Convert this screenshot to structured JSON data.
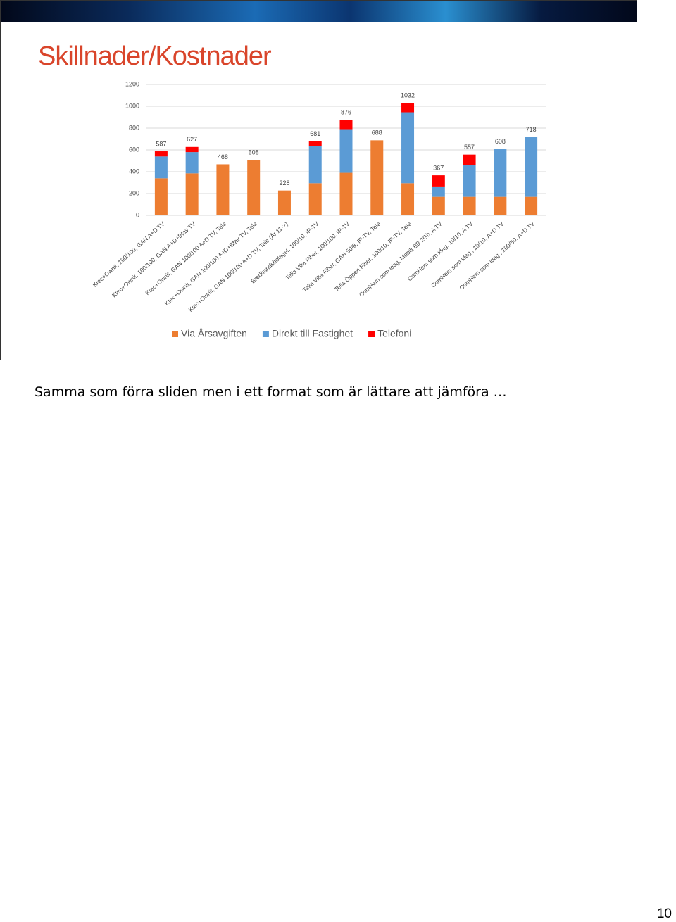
{
  "chart_data": {
    "type": "stacked_bar",
    "title": "Skillnader/Kostnader",
    "categories": [
      "Ktec+Ownit, 100/100, GAN A+D TV",
      "Ktec+Ownit, 100/100, GAN A+D+Bfav TV",
      "Ktec+Ownit, GAN 100/100 A+D TV, Tele",
      "Ktec+Ownit, GAN 100/100 A+D+Bfav TV, Tele",
      "Ktec+Ownit, GAN 100/100 A+D TV, Tele (År 11->)",
      "Bredbandsbolaget, 100/10, IP-TV",
      "Telia Villa Fiber, 100/100, IP-TV",
      "Telia Villa Fiber, GAN 50/8, IP-TV, Tele",
      "Telia Öppen Fiber, 100/10, IP-TV, Tele",
      "ComHem som idag, Mobilt BB 2Gb, A TV",
      "ComHem som idag, 10/10, A TV",
      "ComHem som idag , 10/10, A+D TV",
      "ComHem som idag , 100/50, A+D TV"
    ],
    "series": [
      {
        "name": "Via Årsavgiften",
        "color": "#ed7d31",
        "values": [
          340,
          385,
          468,
          508,
          228,
          295,
          390,
          688,
          295,
          170,
          170,
          170,
          170
        ]
      },
      {
        "name": "Direkt till Fastighet",
        "color": "#5b9bd5",
        "values": [
          200,
          195,
          0,
          0,
          0,
          340,
          400,
          0,
          650,
          95,
          290,
          438,
          548
        ]
      },
      {
        "name": "Telefoni",
        "color": "#ff0000",
        "values": [
          47,
          47,
          0,
          0,
          0,
          46,
          86,
          0,
          87,
          102,
          97,
          0,
          0
        ]
      }
    ],
    "totals": [
      587,
      627,
      468,
      508,
      228,
      681,
      876,
      688,
      1032,
      367,
      557,
      608,
      718
    ],
    "ylim": [
      0,
      1200
    ],
    "yticks": [
      0,
      200,
      400,
      600,
      800,
      1000,
      1200
    ],
    "grid": true
  },
  "note": "Samma som förra sliden men i ett format som är lättare att jämföra …",
  "page_number": "10"
}
